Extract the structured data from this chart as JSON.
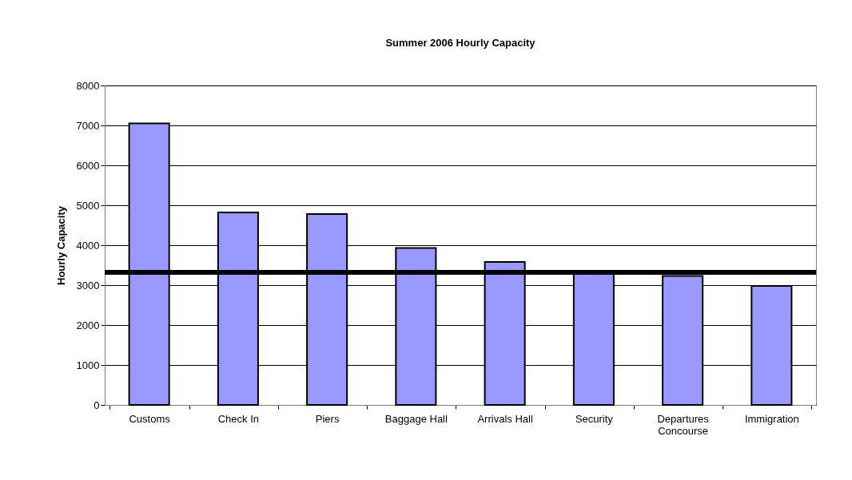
{
  "chart_data": {
    "type": "bar",
    "title": "Summer 2006 Hourly Capacity",
    "ylabel": "Hourly Capacity",
    "categories": [
      "Customs",
      "Check In",
      "Piers",
      "Baggage Hall",
      "Arrivals Hall",
      "Security",
      "Departures Concourse",
      "Immigration"
    ],
    "values": [
      7050,
      4820,
      4780,
      3930,
      3580,
      3300,
      3230,
      2980
    ],
    "color": "#9999ff",
    "ylim": [
      0,
      8000
    ],
    "yticks": [
      0,
      1000,
      2000,
      3000,
      4000,
      5000,
      6000,
      7000,
      8000
    ],
    "grid": "y",
    "ref_lines": [
      {
        "axis": "y",
        "value": 3320,
        "color": "#000000"
      }
    ]
  }
}
